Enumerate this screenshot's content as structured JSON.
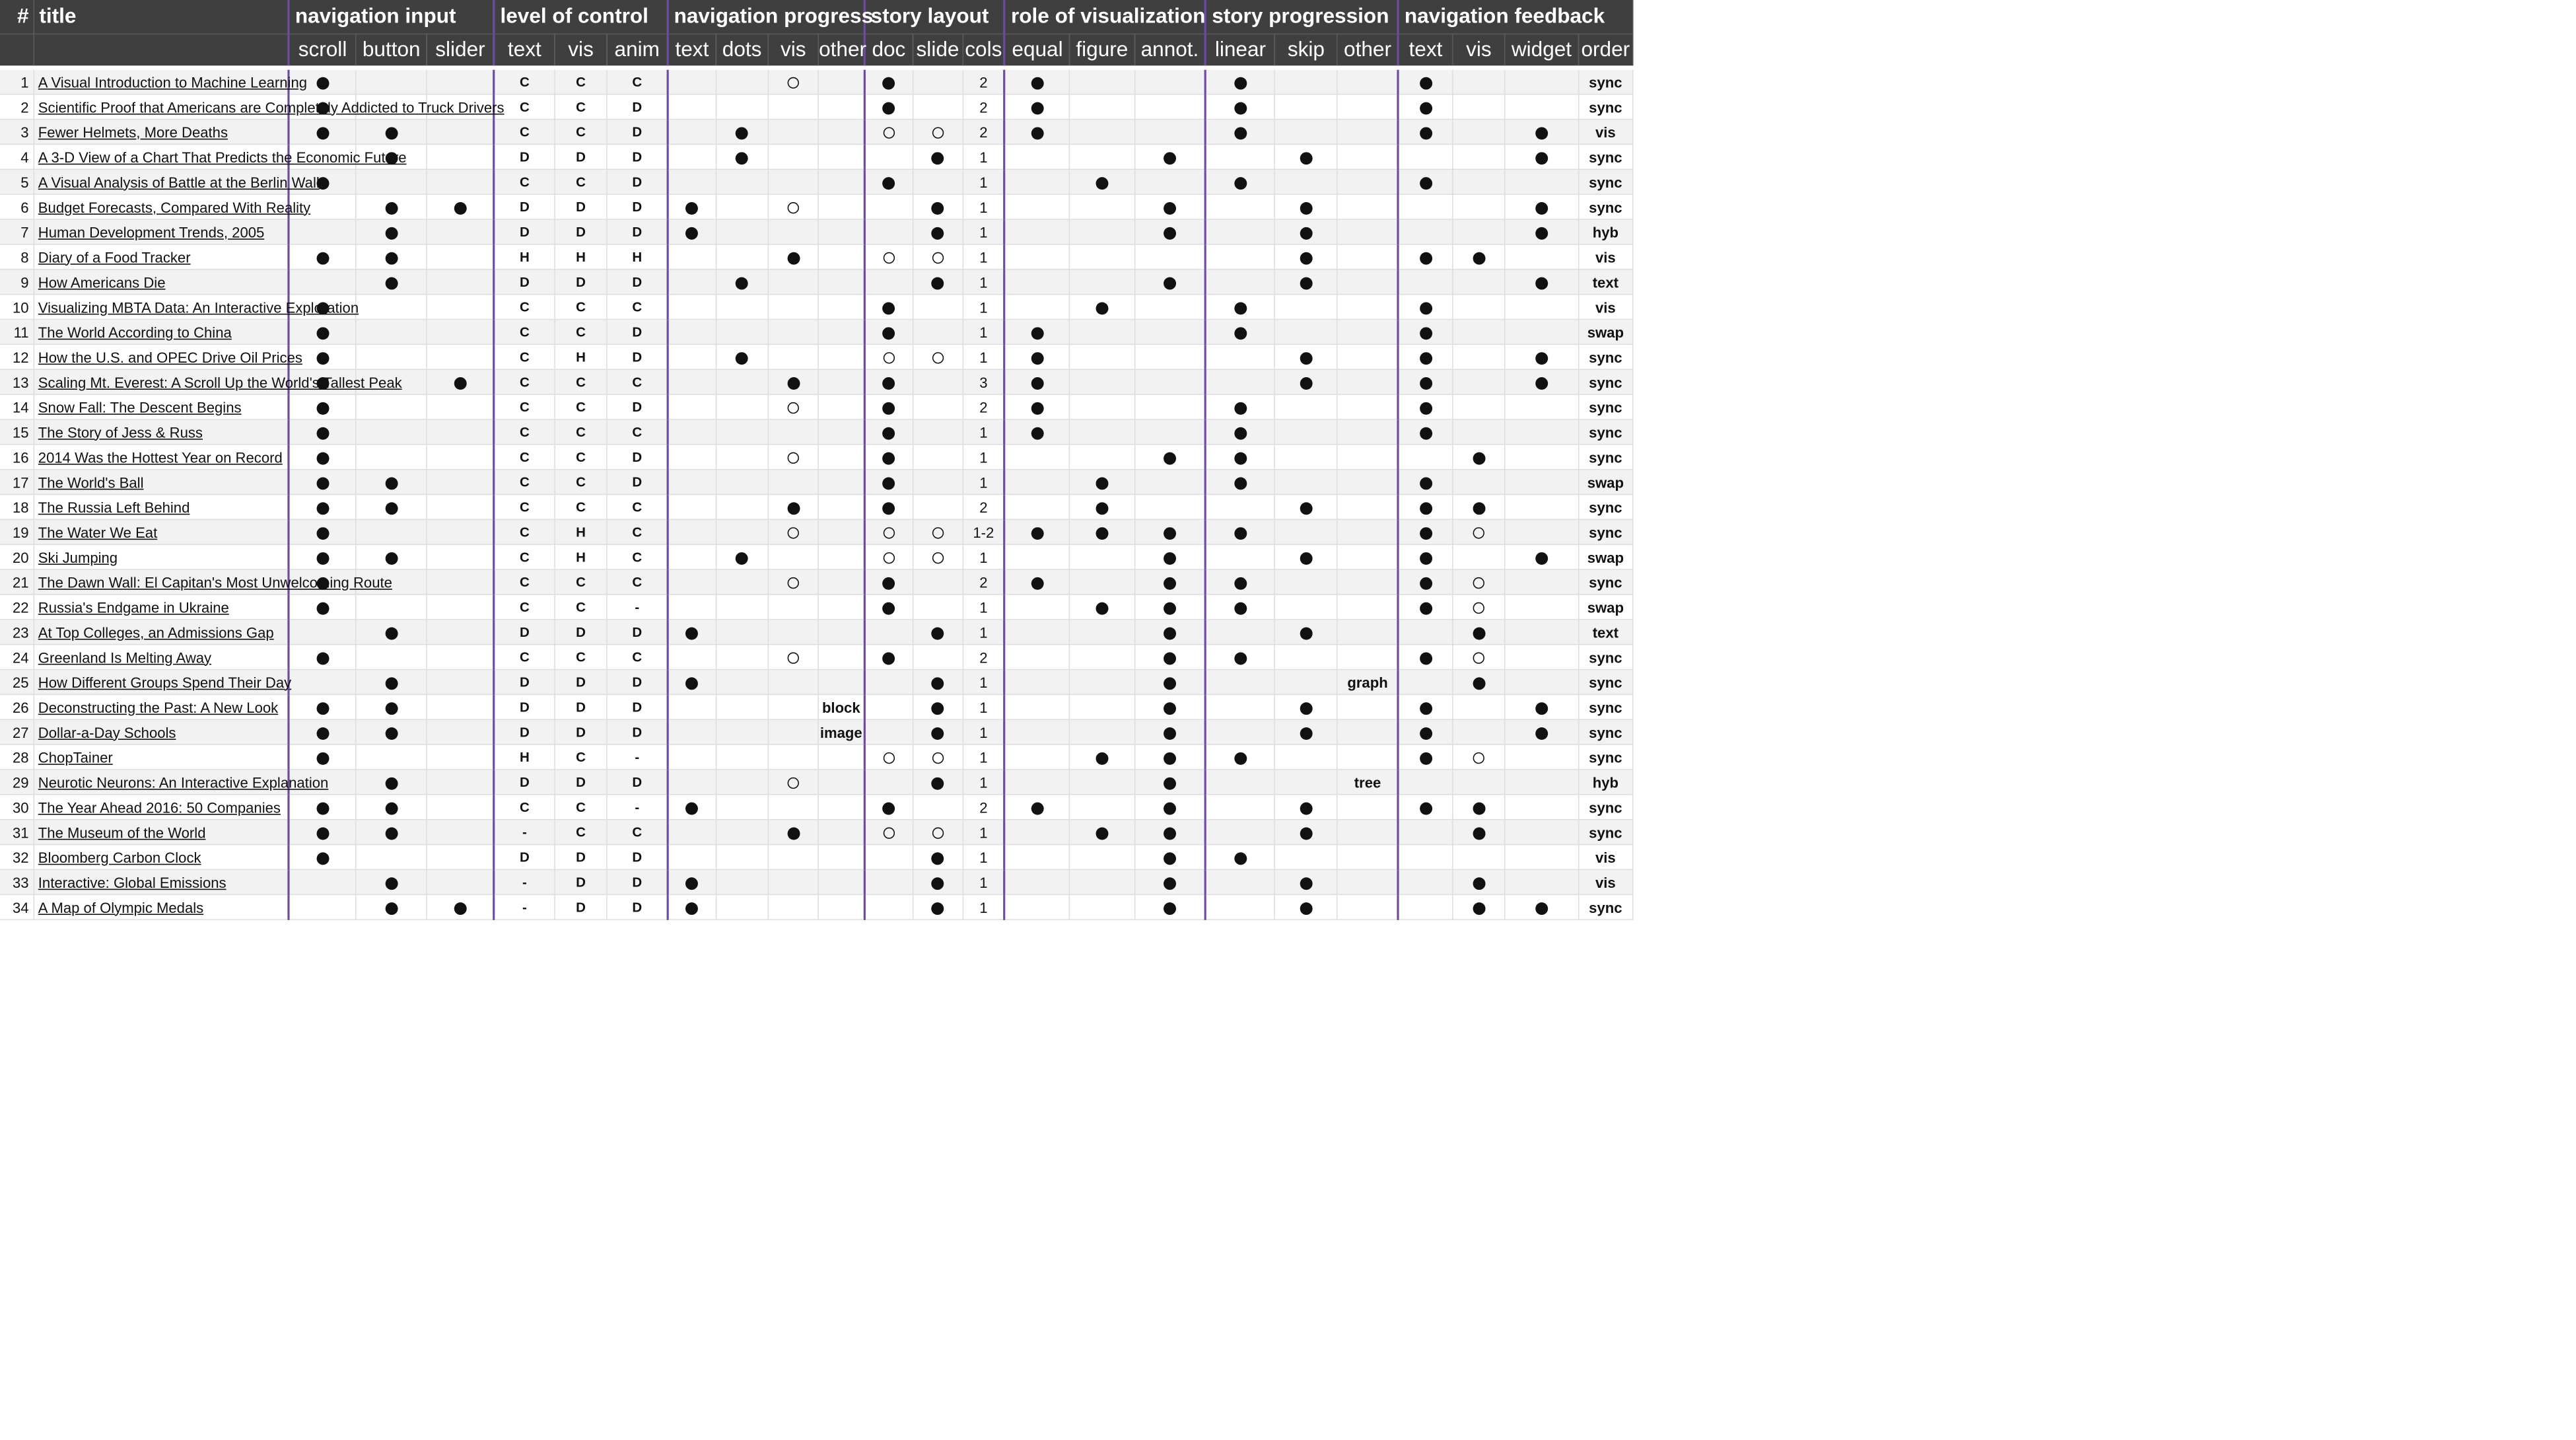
{
  "header": {
    "num": "#",
    "title": "title",
    "groups": [
      {
        "label": "navigation input",
        "sub": [
          "scroll",
          "button",
          "slider"
        ]
      },
      {
        "label": "level of control",
        "sub": [
          "text",
          "vis",
          "anim"
        ]
      },
      {
        "label": "navigation progress",
        "sub": [
          "text",
          "dots",
          "vis",
          "other"
        ]
      },
      {
        "label": "story layout",
        "sub": [
          "doc",
          "slide",
          "cols"
        ]
      },
      {
        "label": "role of visualization",
        "sub": [
          "equal",
          "figure",
          "annot."
        ]
      },
      {
        "label": "story progression",
        "sub": [
          "linear",
          "skip",
          "other"
        ]
      },
      {
        "label": "navigation feedback",
        "sub": [
          "text",
          "vis",
          "widget",
          "order"
        ]
      }
    ]
  },
  "rows": [
    {
      "n": "1",
      "t": "A Visual Introduction to Machine Learning",
      "v": [
        "F",
        "",
        "",
        "C",
        "C",
        "C",
        "",
        "",
        "O",
        "",
        "F",
        "",
        "2",
        "F",
        "",
        "",
        "F",
        "",
        "",
        "F",
        "",
        "",
        "sync"
      ]
    },
    {
      "n": "2",
      "t": "Scientific Proof that Americans are Completely Addicted to Truck Drivers",
      "v": [
        "F",
        "",
        "",
        "C",
        "C",
        "D",
        "",
        "",
        "",
        "",
        "F",
        "",
        "2",
        "F",
        "",
        "",
        "F",
        "",
        "",
        "F",
        "",
        "",
        "sync"
      ]
    },
    {
      "n": "3",
      "t": "Fewer Helmets, More Deaths",
      "v": [
        "F",
        "F",
        "",
        "C",
        "C",
        "D",
        "",
        "F",
        "",
        "",
        "O",
        "O",
        "2",
        "F",
        "",
        "",
        "F",
        "",
        "",
        "F",
        "",
        "F",
        "vis"
      ]
    },
    {
      "n": "4",
      "t": "A 3-D View of a Chart That Predicts the Economic Future",
      "v": [
        "",
        "F",
        "",
        "D",
        "D",
        "D",
        "",
        "F",
        "",
        "",
        "",
        "F",
        "1",
        "",
        "",
        "F",
        "",
        "F",
        "",
        "",
        "",
        "F",
        "sync"
      ]
    },
    {
      "n": "5",
      "t": "A Visual Analysis of Battle at the Berlin Wall",
      "v": [
        "F",
        "",
        "",
        "C",
        "C",
        "D",
        "",
        "",
        "",
        "",
        "F",
        "",
        "1",
        "",
        "F",
        "",
        "F",
        "",
        "",
        "F",
        "",
        "",
        "sync"
      ]
    },
    {
      "n": "6",
      "t": "Budget Forecasts, Compared With Reality",
      "v": [
        "",
        "F",
        "F",
        "D",
        "D",
        "D",
        "F",
        "",
        "O",
        "",
        "",
        "F",
        "1",
        "",
        "",
        "F",
        "",
        "F",
        "",
        "",
        "",
        "F",
        "sync"
      ]
    },
    {
      "n": "7",
      "t": "Human Development Trends, 2005",
      "v": [
        "",
        "F",
        "",
        "D",
        "D",
        "D",
        "F",
        "",
        "",
        "",
        "",
        "F",
        "1",
        "",
        "",
        "F",
        "",
        "F",
        "",
        "",
        "",
        "F",
        "hyb"
      ]
    },
    {
      "n": "8",
      "t": "Diary of a Food Tracker",
      "v": [
        "F",
        "F",
        "",
        "H",
        "H",
        "H",
        "",
        "",
        "F",
        "",
        "O",
        "O",
        "1",
        "",
        "",
        "",
        "",
        "F",
        "",
        "F",
        "F",
        "",
        "vis"
      ]
    },
    {
      "n": "9",
      "t": "How Americans Die",
      "v": [
        "",
        "F",
        "",
        "D",
        "D",
        "D",
        "",
        "F",
        "",
        "",
        "",
        "F",
        "1",
        "",
        "",
        "F",
        "",
        "F",
        "",
        "",
        "",
        "F",
        "text"
      ]
    },
    {
      "n": "10",
      "t": "Visualizing MBTA Data: An Interactive Exploration",
      "v": [
        "F",
        "",
        "",
        "C",
        "C",
        "C",
        "",
        "",
        "",
        "",
        "F",
        "",
        "1",
        "",
        "F",
        "",
        "F",
        "",
        "",
        "F",
        "",
        "",
        "vis"
      ]
    },
    {
      "n": "11",
      "t": "The World According to China",
      "v": [
        "F",
        "",
        "",
        "C",
        "C",
        "D",
        "",
        "",
        "",
        "",
        "F",
        "",
        "1",
        "F",
        "",
        "",
        "F",
        "",
        "",
        "F",
        "",
        "",
        "swap"
      ]
    },
    {
      "n": "12",
      "t": "How the U.S. and OPEC Drive Oil Prices",
      "v": [
        "F",
        "",
        "",
        "C",
        "H",
        "D",
        "",
        "F",
        "",
        "",
        "O",
        "O",
        "1",
        "F",
        "",
        "",
        "",
        "F",
        "",
        "F",
        "",
        "F",
        "sync"
      ]
    },
    {
      "n": "13",
      "t": "Scaling Mt. Everest: A Scroll Up the World's Tallest Peak",
      "v": [
        "F",
        "",
        "F",
        "C",
        "C",
        "C",
        "",
        "",
        "F",
        "",
        "F",
        "",
        "3",
        "F",
        "",
        "",
        "",
        "F",
        "",
        "F",
        "",
        "F",
        "sync"
      ]
    },
    {
      "n": "14",
      "t": "Snow Fall: The Descent Begins",
      "v": [
        "F",
        "",
        "",
        "C",
        "C",
        "D",
        "",
        "",
        "O",
        "",
        "F",
        "",
        "2",
        "F",
        "",
        "",
        "F",
        "",
        "",
        "F",
        "",
        "",
        "sync"
      ]
    },
    {
      "n": "15",
      "t": "The Story of Jess & Russ",
      "v": [
        "F",
        "",
        "",
        "C",
        "C",
        "C",
        "",
        "",
        "",
        "",
        "F",
        "",
        "1",
        "F",
        "",
        "",
        "F",
        "",
        "",
        "F",
        "",
        "",
        "sync"
      ]
    },
    {
      "n": "16",
      "t": "2014 Was the Hottest Year on Record",
      "v": [
        "F",
        "",
        "",
        "C",
        "C",
        "D",
        "",
        "",
        "O",
        "",
        "F",
        "",
        "1",
        "",
        "",
        "F",
        "F",
        "",
        "",
        "",
        "F",
        "",
        "sync"
      ]
    },
    {
      "n": "17",
      "t": "The World's Ball",
      "v": [
        "F",
        "F",
        "",
        "C",
        "C",
        "D",
        "",
        "",
        "",
        "",
        "F",
        "",
        "1",
        "",
        "F",
        "",
        "F",
        "",
        "",
        "F",
        "",
        "",
        "swap"
      ]
    },
    {
      "n": "18",
      "t": "The Russia Left Behind",
      "v": [
        "F",
        "F",
        "",
        "C",
        "C",
        "C",
        "",
        "",
        "F",
        "",
        "F",
        "",
        "2",
        "",
        "F",
        "",
        "",
        "F",
        "",
        "F",
        "F",
        "",
        "sync"
      ]
    },
    {
      "n": "19",
      "t": "The Water We Eat",
      "v": [
        "F",
        "",
        "",
        "C",
        "H",
        "C",
        "",
        "",
        "O",
        "",
        "O",
        "O",
        "1-2",
        "F",
        "F",
        "F",
        "F",
        "",
        "",
        "F",
        "O",
        "",
        "sync"
      ]
    },
    {
      "n": "20",
      "t": "Ski Jumping",
      "v": [
        "F",
        "F",
        "",
        "C",
        "H",
        "C",
        "",
        "F",
        "",
        "",
        "O",
        "O",
        "1",
        "",
        "",
        "F",
        "",
        "F",
        "",
        "F",
        "",
        "F",
        "swap"
      ]
    },
    {
      "n": "21",
      "t": "The Dawn Wall: El Capitan's Most Unwelcoming Route",
      "v": [
        "F",
        "",
        "",
        "C",
        "C",
        "C",
        "",
        "",
        "O",
        "",
        "F",
        "",
        "2",
        "F",
        "",
        "F",
        "F",
        "",
        "",
        "F",
        "O",
        "",
        "sync"
      ]
    },
    {
      "n": "22",
      "t": "Russia's Endgame in Ukraine",
      "v": [
        "F",
        "",
        "",
        "C",
        "C",
        "-",
        "",
        "",
        "",
        "",
        "F",
        "",
        "1",
        "",
        "F",
        "F",
        "F",
        "",
        "",
        "F",
        "O",
        "",
        "swap"
      ]
    },
    {
      "n": "23",
      "t": "At Top Colleges, an Admissions Gap",
      "v": [
        "",
        "F",
        "",
        "D",
        "D",
        "D",
        "F",
        "",
        "",
        "",
        "",
        "F",
        "1",
        "",
        "",
        "F",
        "",
        "F",
        "",
        "",
        "F",
        "",
        "text"
      ]
    },
    {
      "n": "24",
      "t": "Greenland Is Melting Away",
      "v": [
        "F",
        "",
        "",
        "C",
        "C",
        "C",
        "",
        "",
        "O",
        "",
        "F",
        "",
        "2",
        "",
        "",
        "F",
        "F",
        "",
        "",
        "F",
        "O",
        "",
        "sync"
      ]
    },
    {
      "n": "25",
      "t": "How Different Groups Spend Their Day",
      "v": [
        "",
        "F",
        "",
        "D",
        "D",
        "D",
        "F",
        "",
        "",
        "",
        "",
        "F",
        "1",
        "",
        "",
        "F",
        "",
        "",
        "graph",
        "",
        "F",
        "",
        "sync"
      ]
    },
    {
      "n": "26",
      "t": "Deconstructing the Past: A New Look",
      "v": [
        "F",
        "F",
        "",
        "D",
        "D",
        "D",
        "",
        "",
        "",
        "block",
        "",
        "F",
        "1",
        "",
        "",
        "F",
        "",
        "F",
        "",
        "F",
        "",
        "F",
        "sync"
      ]
    },
    {
      "n": "27",
      "t": "Dollar-a-Day Schools",
      "v": [
        "F",
        "F",
        "",
        "D",
        "D",
        "D",
        "",
        "",
        "",
        "image",
        "",
        "F",
        "1",
        "",
        "",
        "F",
        "",
        "F",
        "",
        "F",
        "",
        "F",
        "sync"
      ]
    },
    {
      "n": "28",
      "t": "ChopTainer",
      "v": [
        "F",
        "",
        "",
        "H",
        "C",
        "-",
        "",
        "",
        "",
        "",
        "O",
        "O",
        "1",
        "",
        "F",
        "F",
        "F",
        "",
        "",
        "F",
        "O",
        "",
        "sync"
      ]
    },
    {
      "n": "29",
      "t": "Neurotic Neurons: An Interactive Explanation",
      "v": [
        "",
        "F",
        "",
        "D",
        "D",
        "D",
        "",
        "",
        "O",
        "",
        "",
        "F",
        "1",
        "",
        "",
        "F",
        "",
        "",
        "tree",
        "",
        "",
        "",
        "hyb"
      ]
    },
    {
      "n": "30",
      "t": "The Year Ahead 2016: 50 Companies",
      "v": [
        "F",
        "F",
        "",
        "C",
        "C",
        "-",
        "F",
        "",
        "",
        "",
        "F",
        "",
        "2",
        "F",
        "",
        "F",
        "",
        "F",
        "",
        "F",
        "F",
        "",
        "sync"
      ]
    },
    {
      "n": "31",
      "t": "The Museum of the World",
      "v": [
        "F",
        "F",
        "",
        "-",
        "C",
        "C",
        "",
        "",
        "F",
        "",
        "O",
        "O",
        "1",
        "",
        "F",
        "F",
        "",
        "F",
        "",
        "",
        "F",
        "",
        "sync"
      ]
    },
    {
      "n": "32",
      "t": "Bloomberg Carbon Clock",
      "v": [
        "F",
        "",
        "",
        "D",
        "D",
        "D",
        "",
        "",
        "",
        "",
        "",
        "F",
        "1",
        "",
        "",
        "F",
        "F",
        "",
        "",
        "",
        "",
        "",
        "vis"
      ]
    },
    {
      "n": "33",
      "t": "Interactive: Global Emissions",
      "v": [
        "",
        "F",
        "",
        "-",
        "D",
        "D",
        "F",
        "",
        "",
        "",
        "",
        "F",
        "1",
        "",
        "",
        "F",
        "",
        "F",
        "",
        "",
        "F",
        "",
        "vis"
      ]
    },
    {
      "n": "34",
      "t": "A Map of Olympic Medals",
      "v": [
        "",
        "F",
        "F",
        "-",
        "D",
        "D",
        "F",
        "",
        "",
        "",
        "",
        "F",
        "1",
        "",
        "",
        "F",
        "",
        "F",
        "",
        "",
        "F",
        "F",
        "sync"
      ]
    }
  ]
}
